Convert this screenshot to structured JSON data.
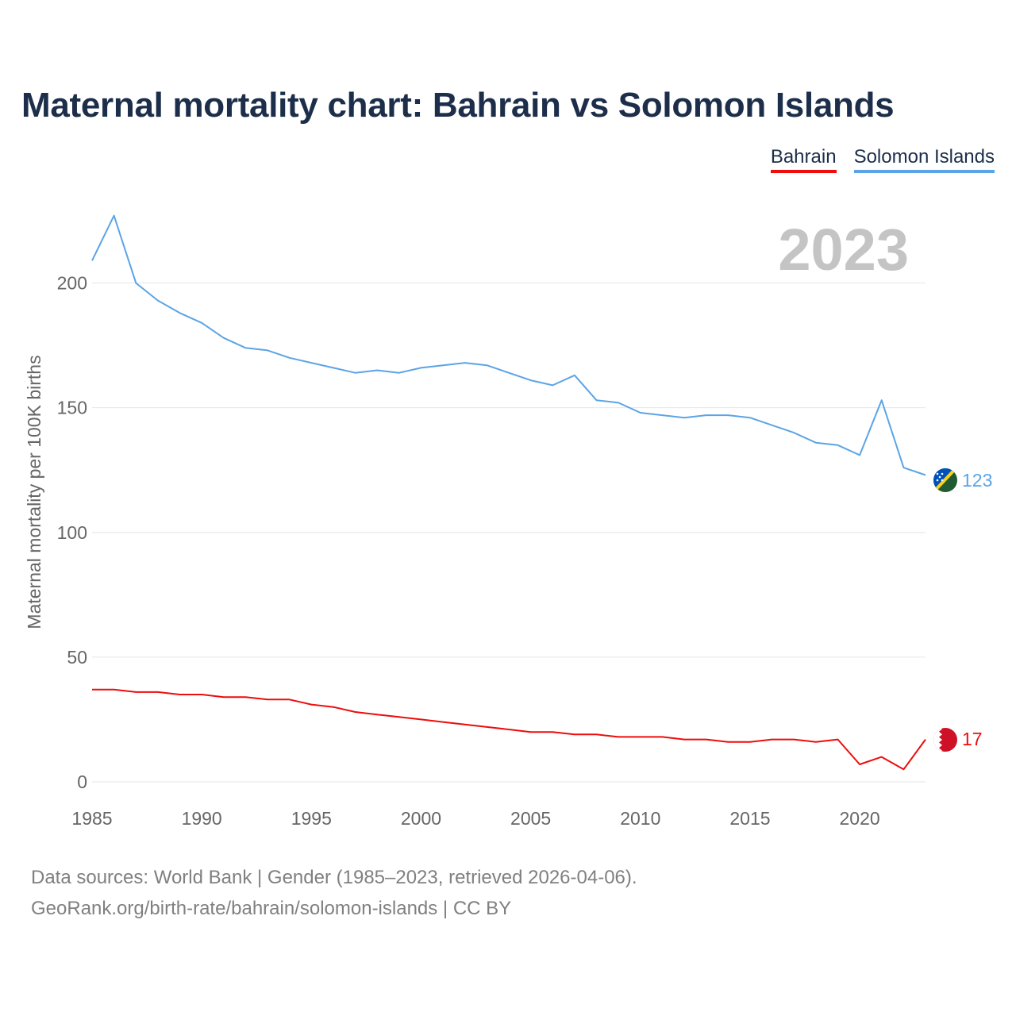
{
  "title": "Maternal mortality chart: Bahrain vs Solomon Islands",
  "legend": [
    {
      "name": "Bahrain",
      "color": "#ee0c0c"
    },
    {
      "name": "Solomon Islands",
      "color": "#5ba4e6"
    }
  ],
  "year_label": "2023",
  "source_line1": "Data sources: World Bank | Gender (1985–2023, retrieved 2026-04-06).",
  "source_line2": "GeoRank.org/birth-rate/bahrain/solomon-islands | CC BY",
  "chart_data": {
    "type": "line",
    "title": "Maternal mortality chart: Bahrain vs Solomon Islands",
    "xlabel": "",
    "ylabel": "Maternal mortality per 100K births",
    "xlim": [
      1985,
      2023
    ],
    "ylim": [
      0,
      225
    ],
    "x_ticks": [
      1985,
      1990,
      1995,
      2000,
      2005,
      2010,
      2015,
      2020
    ],
    "y_ticks": [
      0,
      50,
      100,
      150,
      200
    ],
    "grid": true,
    "legend_position": "top-right",
    "x": [
      1985,
      1986,
      1987,
      1988,
      1989,
      1990,
      1991,
      1992,
      1993,
      1994,
      1995,
      1996,
      1997,
      1998,
      1999,
      2000,
      2001,
      2002,
      2003,
      2004,
      2005,
      2006,
      2007,
      2008,
      2009,
      2010,
      2011,
      2012,
      2013,
      2014,
      2015,
      2016,
      2017,
      2018,
      2019,
      2020,
      2021,
      2022,
      2023
    ],
    "series": [
      {
        "name": "Bahrain",
        "color": "#ee0c0c",
        "end_label": "17",
        "values": [
          37,
          37,
          36,
          36,
          35,
          35,
          34,
          34,
          33,
          33,
          31,
          30,
          28,
          27,
          26,
          25,
          24,
          23,
          22,
          21,
          20,
          20,
          19,
          19,
          18,
          18,
          18,
          17,
          17,
          16,
          16,
          17,
          17,
          16,
          17,
          7,
          10,
          5,
          17
        ]
      },
      {
        "name": "Solomon Islands",
        "color": "#5ba4e6",
        "end_label": "123",
        "values": [
          209,
          227,
          200,
          193,
          188,
          184,
          178,
          174,
          173,
          170,
          168,
          166,
          164,
          165,
          164,
          166,
          167,
          168,
          167,
          164,
          161,
          159,
          163,
          153,
          152,
          148,
          147,
          146,
          147,
          147,
          146,
          143,
          140,
          136,
          135,
          131,
          153,
          126,
          123
        ]
      }
    ]
  }
}
